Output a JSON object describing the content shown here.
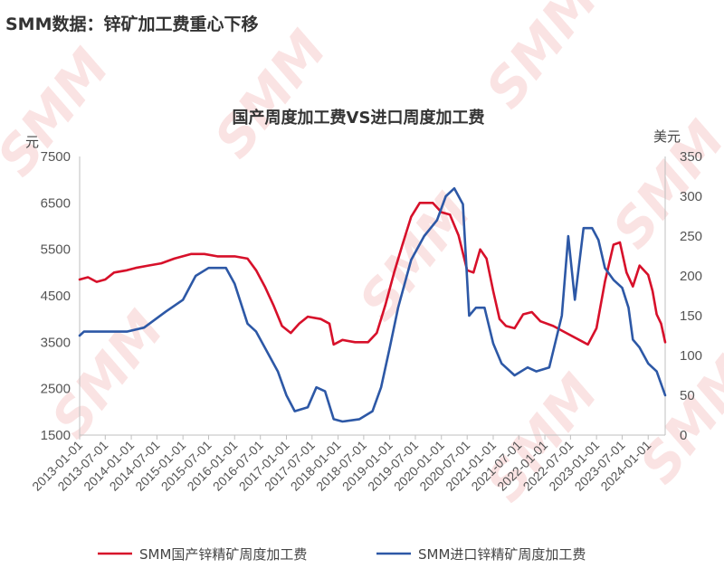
{
  "page": {
    "headline": "SMM数据：锌矿加工费重心下移",
    "watermark": "SMM"
  },
  "chart_data": {
    "type": "line",
    "title": "国产周度加工费VS进口周度加工费",
    "left_unit": "元",
    "right_unit": "美元",
    "left_ylim": [
      1500,
      7500
    ],
    "right_ylim": [
      0,
      350
    ],
    "left_ticks": [
      "1500",
      "2500",
      "3500",
      "4500",
      "5500",
      "6500",
      "7500"
    ],
    "right_ticks": [
      "0",
      "50",
      "100",
      "150",
      "200",
      "250",
      "300",
      "350"
    ],
    "x_range": [
      "2013-01-01",
      "2024-04-30"
    ],
    "x_ticks": [
      "2013-01-01",
      "2013-07-01",
      "2014-01-01",
      "2014-07-01",
      "2015-01-01",
      "2015-07-01",
      "2016-01-01",
      "2016-07-01",
      "2017-01-01",
      "2017-07-01",
      "2018-01-01",
      "2018-07-01",
      "2019-01-01",
      "2019-07-01",
      "2020-01-01",
      "2020-07-01",
      "2021-01-01",
      "2021-07-01",
      "2022-01-01",
      "2022-07-01",
      "2023-01-01",
      "2023-07-01",
      "2024-01-01"
    ],
    "grid": false,
    "legend_position": "bottom",
    "series": [
      {
        "name": "SMM国产锌精矿周度加工费",
        "axis": "left",
        "color": "#d7102a",
        "points": [
          [
            "2013-01-01",
            4850
          ],
          [
            "2013-03-01",
            4900
          ],
          [
            "2013-05-01",
            4800
          ],
          [
            "2013-07-01",
            4850
          ],
          [
            "2013-09-01",
            5000
          ],
          [
            "2013-12-01",
            5050
          ],
          [
            "2014-02-01",
            5100
          ],
          [
            "2014-05-01",
            5150
          ],
          [
            "2014-08-01",
            5200
          ],
          [
            "2014-11-01",
            5300
          ],
          [
            "2015-03-01",
            5400
          ],
          [
            "2015-06-01",
            5400
          ],
          [
            "2015-09-01",
            5350
          ],
          [
            "2016-01-01",
            5350
          ],
          [
            "2016-04-01",
            5300
          ],
          [
            "2016-06-01",
            5050
          ],
          [
            "2016-08-01",
            4700
          ],
          [
            "2016-10-01",
            4300
          ],
          [
            "2016-12-01",
            3850
          ],
          [
            "2017-02-01",
            3700
          ],
          [
            "2017-04-01",
            3900
          ],
          [
            "2017-06-01",
            4050
          ],
          [
            "2017-09-01",
            4000
          ],
          [
            "2017-11-01",
            3900
          ],
          [
            "2017-12-01",
            3450
          ],
          [
            "2018-02-01",
            3550
          ],
          [
            "2018-05-01",
            3500
          ],
          [
            "2018-08-01",
            3500
          ],
          [
            "2018-10-01",
            3700
          ],
          [
            "2018-12-01",
            4300
          ],
          [
            "2019-02-01",
            5000
          ],
          [
            "2019-04-01",
            5600
          ],
          [
            "2019-06-01",
            6200
          ],
          [
            "2019-08-01",
            6500
          ],
          [
            "2019-11-01",
            6500
          ],
          [
            "2020-01-01",
            6300
          ],
          [
            "2020-03-01",
            6250
          ],
          [
            "2020-05-01",
            5800
          ],
          [
            "2020-07-01",
            5050
          ],
          [
            "2020-08-15",
            5000
          ],
          [
            "2020-10-01",
            5500
          ],
          [
            "2020-11-15",
            5300
          ],
          [
            "2021-01-01",
            4600
          ],
          [
            "2021-02-15",
            4000
          ],
          [
            "2021-04-01",
            3850
          ],
          [
            "2021-06-01",
            3800
          ],
          [
            "2021-08-01",
            4100
          ],
          [
            "2021-10-01",
            4150
          ],
          [
            "2021-12-01",
            3950
          ],
          [
            "2022-03-01",
            3850
          ],
          [
            "2022-06-01",
            3700
          ],
          [
            "2022-09-01",
            3550
          ],
          [
            "2022-11-01",
            3450
          ],
          [
            "2023-01-01",
            3800
          ],
          [
            "2023-03-01",
            4800
          ],
          [
            "2023-05-01",
            5600
          ],
          [
            "2023-06-15",
            5650
          ],
          [
            "2023-08-01",
            5000
          ],
          [
            "2023-09-15",
            4700
          ],
          [
            "2023-11-01",
            5150
          ],
          [
            "2024-01-01",
            4950
          ],
          [
            "2024-02-01",
            4600
          ],
          [
            "2024-03-01",
            4100
          ],
          [
            "2024-04-01",
            3900
          ],
          [
            "2024-04-30",
            3500
          ]
        ]
      },
      {
        "name": "SMM进口锌精矿周度加工费",
        "axis": "right",
        "color": "#2d58a6",
        "points": [
          [
            "2013-01-01",
            125
          ],
          [
            "2013-02-01",
            130
          ],
          [
            "2013-06-01",
            130
          ],
          [
            "2013-12-01",
            130
          ],
          [
            "2014-04-01",
            135
          ],
          [
            "2014-09-01",
            155
          ],
          [
            "2015-01-01",
            170
          ],
          [
            "2015-04-01",
            200
          ],
          [
            "2015-07-01",
            210
          ],
          [
            "2015-11-01",
            210
          ],
          [
            "2016-01-01",
            190
          ],
          [
            "2016-04-01",
            140
          ],
          [
            "2016-06-01",
            130
          ],
          [
            "2016-09-01",
            100
          ],
          [
            "2016-11-01",
            80
          ],
          [
            "2017-01-01",
            50
          ],
          [
            "2017-03-01",
            30
          ],
          [
            "2017-06-01",
            35
          ],
          [
            "2017-08-01",
            60
          ],
          [
            "2017-10-01",
            55
          ],
          [
            "2017-12-01",
            20
          ],
          [
            "2018-02-01",
            17
          ],
          [
            "2018-06-01",
            20
          ],
          [
            "2018-09-01",
            30
          ],
          [
            "2018-11-01",
            60
          ],
          [
            "2019-01-01",
            110
          ],
          [
            "2019-03-01",
            160
          ],
          [
            "2019-06-01",
            220
          ],
          [
            "2019-09-01",
            250
          ],
          [
            "2019-12-01",
            270
          ],
          [
            "2020-02-01",
            300
          ],
          [
            "2020-04-01",
            310
          ],
          [
            "2020-06-01",
            290
          ],
          [
            "2020-07-15",
            150
          ],
          [
            "2020-09-01",
            160
          ],
          [
            "2020-11-01",
            160
          ],
          [
            "2021-01-01",
            115
          ],
          [
            "2021-03-01",
            90
          ],
          [
            "2021-06-01",
            75
          ],
          [
            "2021-09-01",
            85
          ],
          [
            "2021-11-01",
            80
          ],
          [
            "2022-02-01",
            85
          ],
          [
            "2022-05-01",
            150
          ],
          [
            "2022-06-15",
            250
          ],
          [
            "2022-08-01",
            170
          ],
          [
            "2022-10-01",
            260
          ],
          [
            "2022-12-01",
            260
          ],
          [
            "2023-01-15",
            245
          ],
          [
            "2023-03-01",
            210
          ],
          [
            "2023-05-01",
            195
          ],
          [
            "2023-07-01",
            185
          ],
          [
            "2023-08-15",
            160
          ],
          [
            "2023-09-15",
            120
          ],
          [
            "2023-11-01",
            110
          ],
          [
            "2024-01-01",
            90
          ],
          [
            "2024-03-01",
            80
          ],
          [
            "2024-04-30",
            50
          ]
        ]
      }
    ]
  }
}
